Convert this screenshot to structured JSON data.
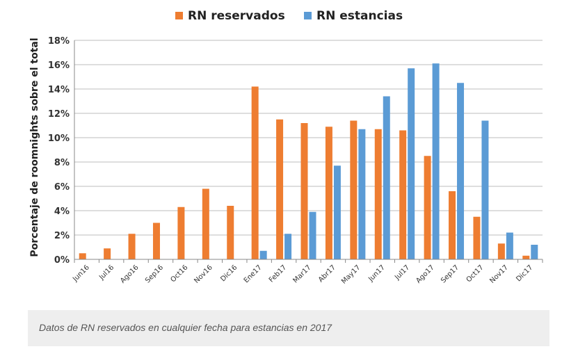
{
  "chart_data": {
    "type": "bar",
    "categories": [
      "Jun16",
      "Jul16",
      "Ago16",
      "Sep16",
      "Oct16",
      "Nov16",
      "Dic16",
      "Ene17",
      "Feb17",
      "Mar17",
      "Abr17",
      "May17",
      "Jun17",
      "Jul17",
      "Ago17",
      "Sep17",
      "Oct17",
      "Nov17",
      "Dic17"
    ],
    "series": [
      {
        "name": "RN reservados",
        "color": "#ee7d31",
        "values": [
          0.5,
          0.9,
          2.1,
          3.0,
          4.3,
          5.8,
          4.4,
          14.2,
          11.5,
          11.2,
          10.9,
          11.4,
          10.7,
          10.6,
          8.5,
          5.6,
          3.5,
          1.3,
          0.3
        ]
      },
      {
        "name": "RN estancias",
        "color": "#5b9bd5",
        "values": [
          0,
          0,
          0,
          0,
          0,
          0,
          0,
          0.7,
          2.1,
          3.9,
          7.7,
          10.7,
          13.4,
          15.7,
          16.1,
          14.5,
          11.4,
          2.2,
          1.2
        ]
      }
    ],
    "ylabel": "Porcentaje de roomnights sobre el total",
    "ylim": [
      0,
      18
    ],
    "yticks": [
      0,
      2,
      4,
      6,
      8,
      10,
      12,
      14,
      16,
      18
    ],
    "ytick_suffix": "%",
    "grid": true,
    "legend_position": "top-center"
  },
  "caption": "Datos de RN reservados en cualquier fecha para estancias en 2017"
}
